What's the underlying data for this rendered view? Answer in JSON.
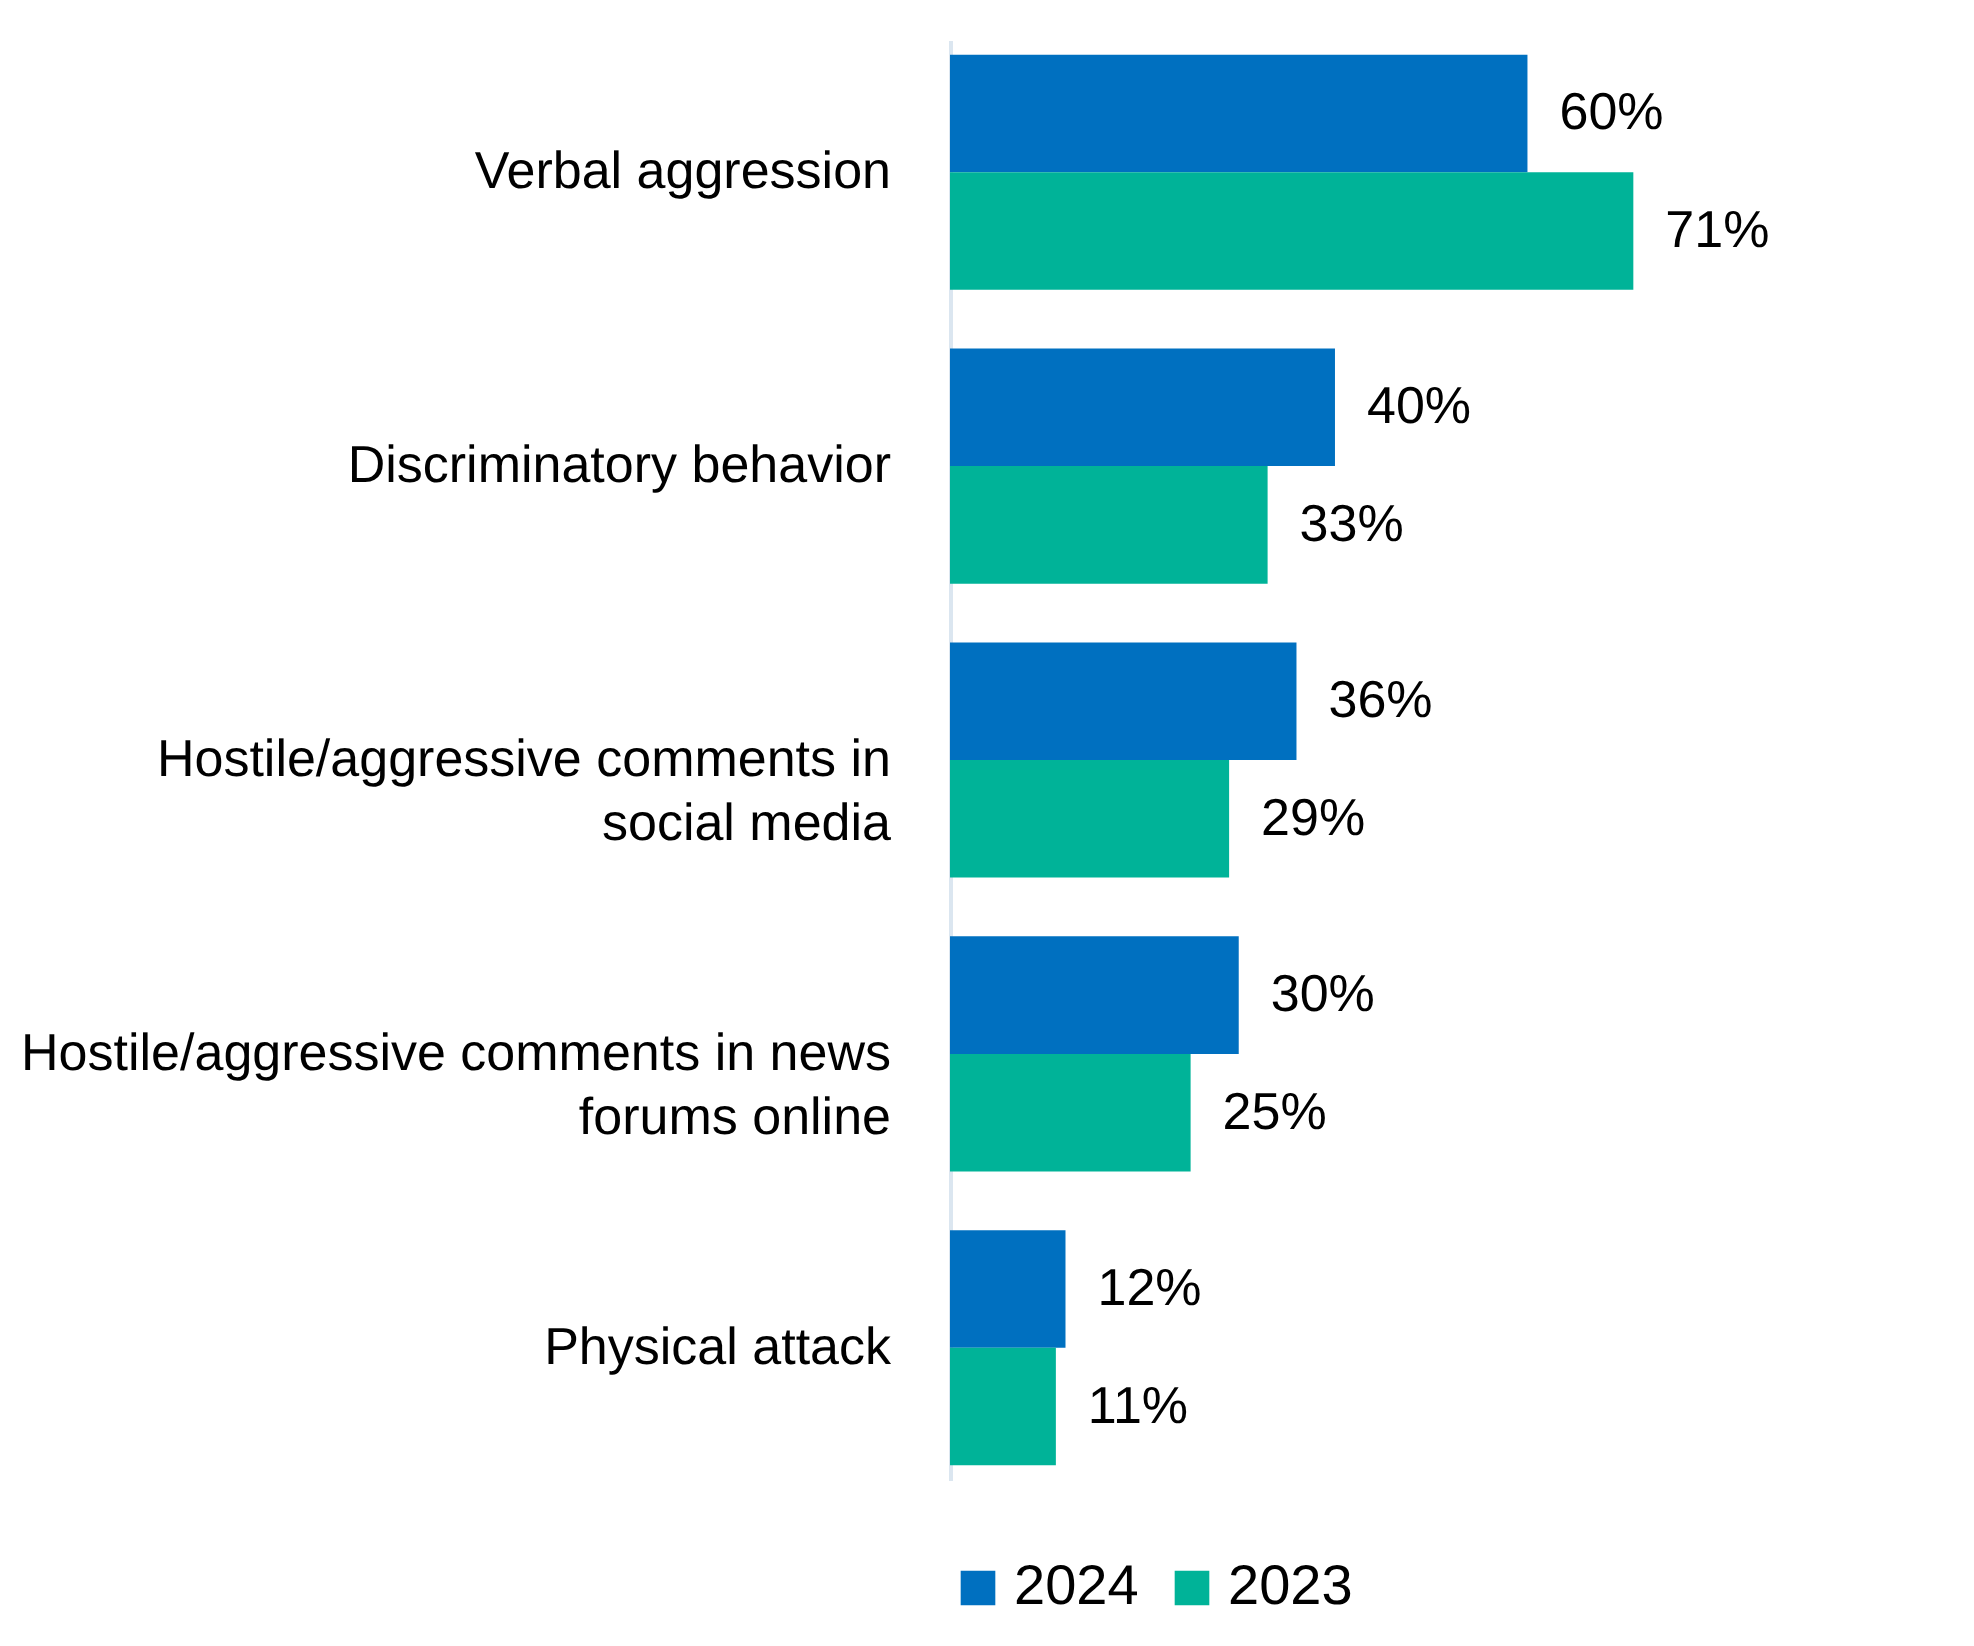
{
  "chart_data": {
    "type": "bar",
    "orientation": "horizontal",
    "categories": [
      "Verbal aggression",
      "Discriminatory behavior",
      "Hostile/aggressive comments in social media",
      "Hostile/aggressive comments in news forums online",
      "Physical attack"
    ],
    "series": [
      {
        "name": "2024",
        "color": "#0070c0",
        "values": [
          60,
          40,
          36,
          30,
          12
        ],
        "value_labels": [
          "60%",
          "40%",
          "36%",
          "30%",
          "12%"
        ]
      },
      {
        "name": "2023",
        "color": "#00b398",
        "values": [
          71,
          33,
          29,
          25,
          11
        ],
        "value_labels": [
          "71%",
          "33%",
          "29%",
          "25%",
          "11%"
        ]
      }
    ],
    "legend": "bottom",
    "grid": false
  }
}
